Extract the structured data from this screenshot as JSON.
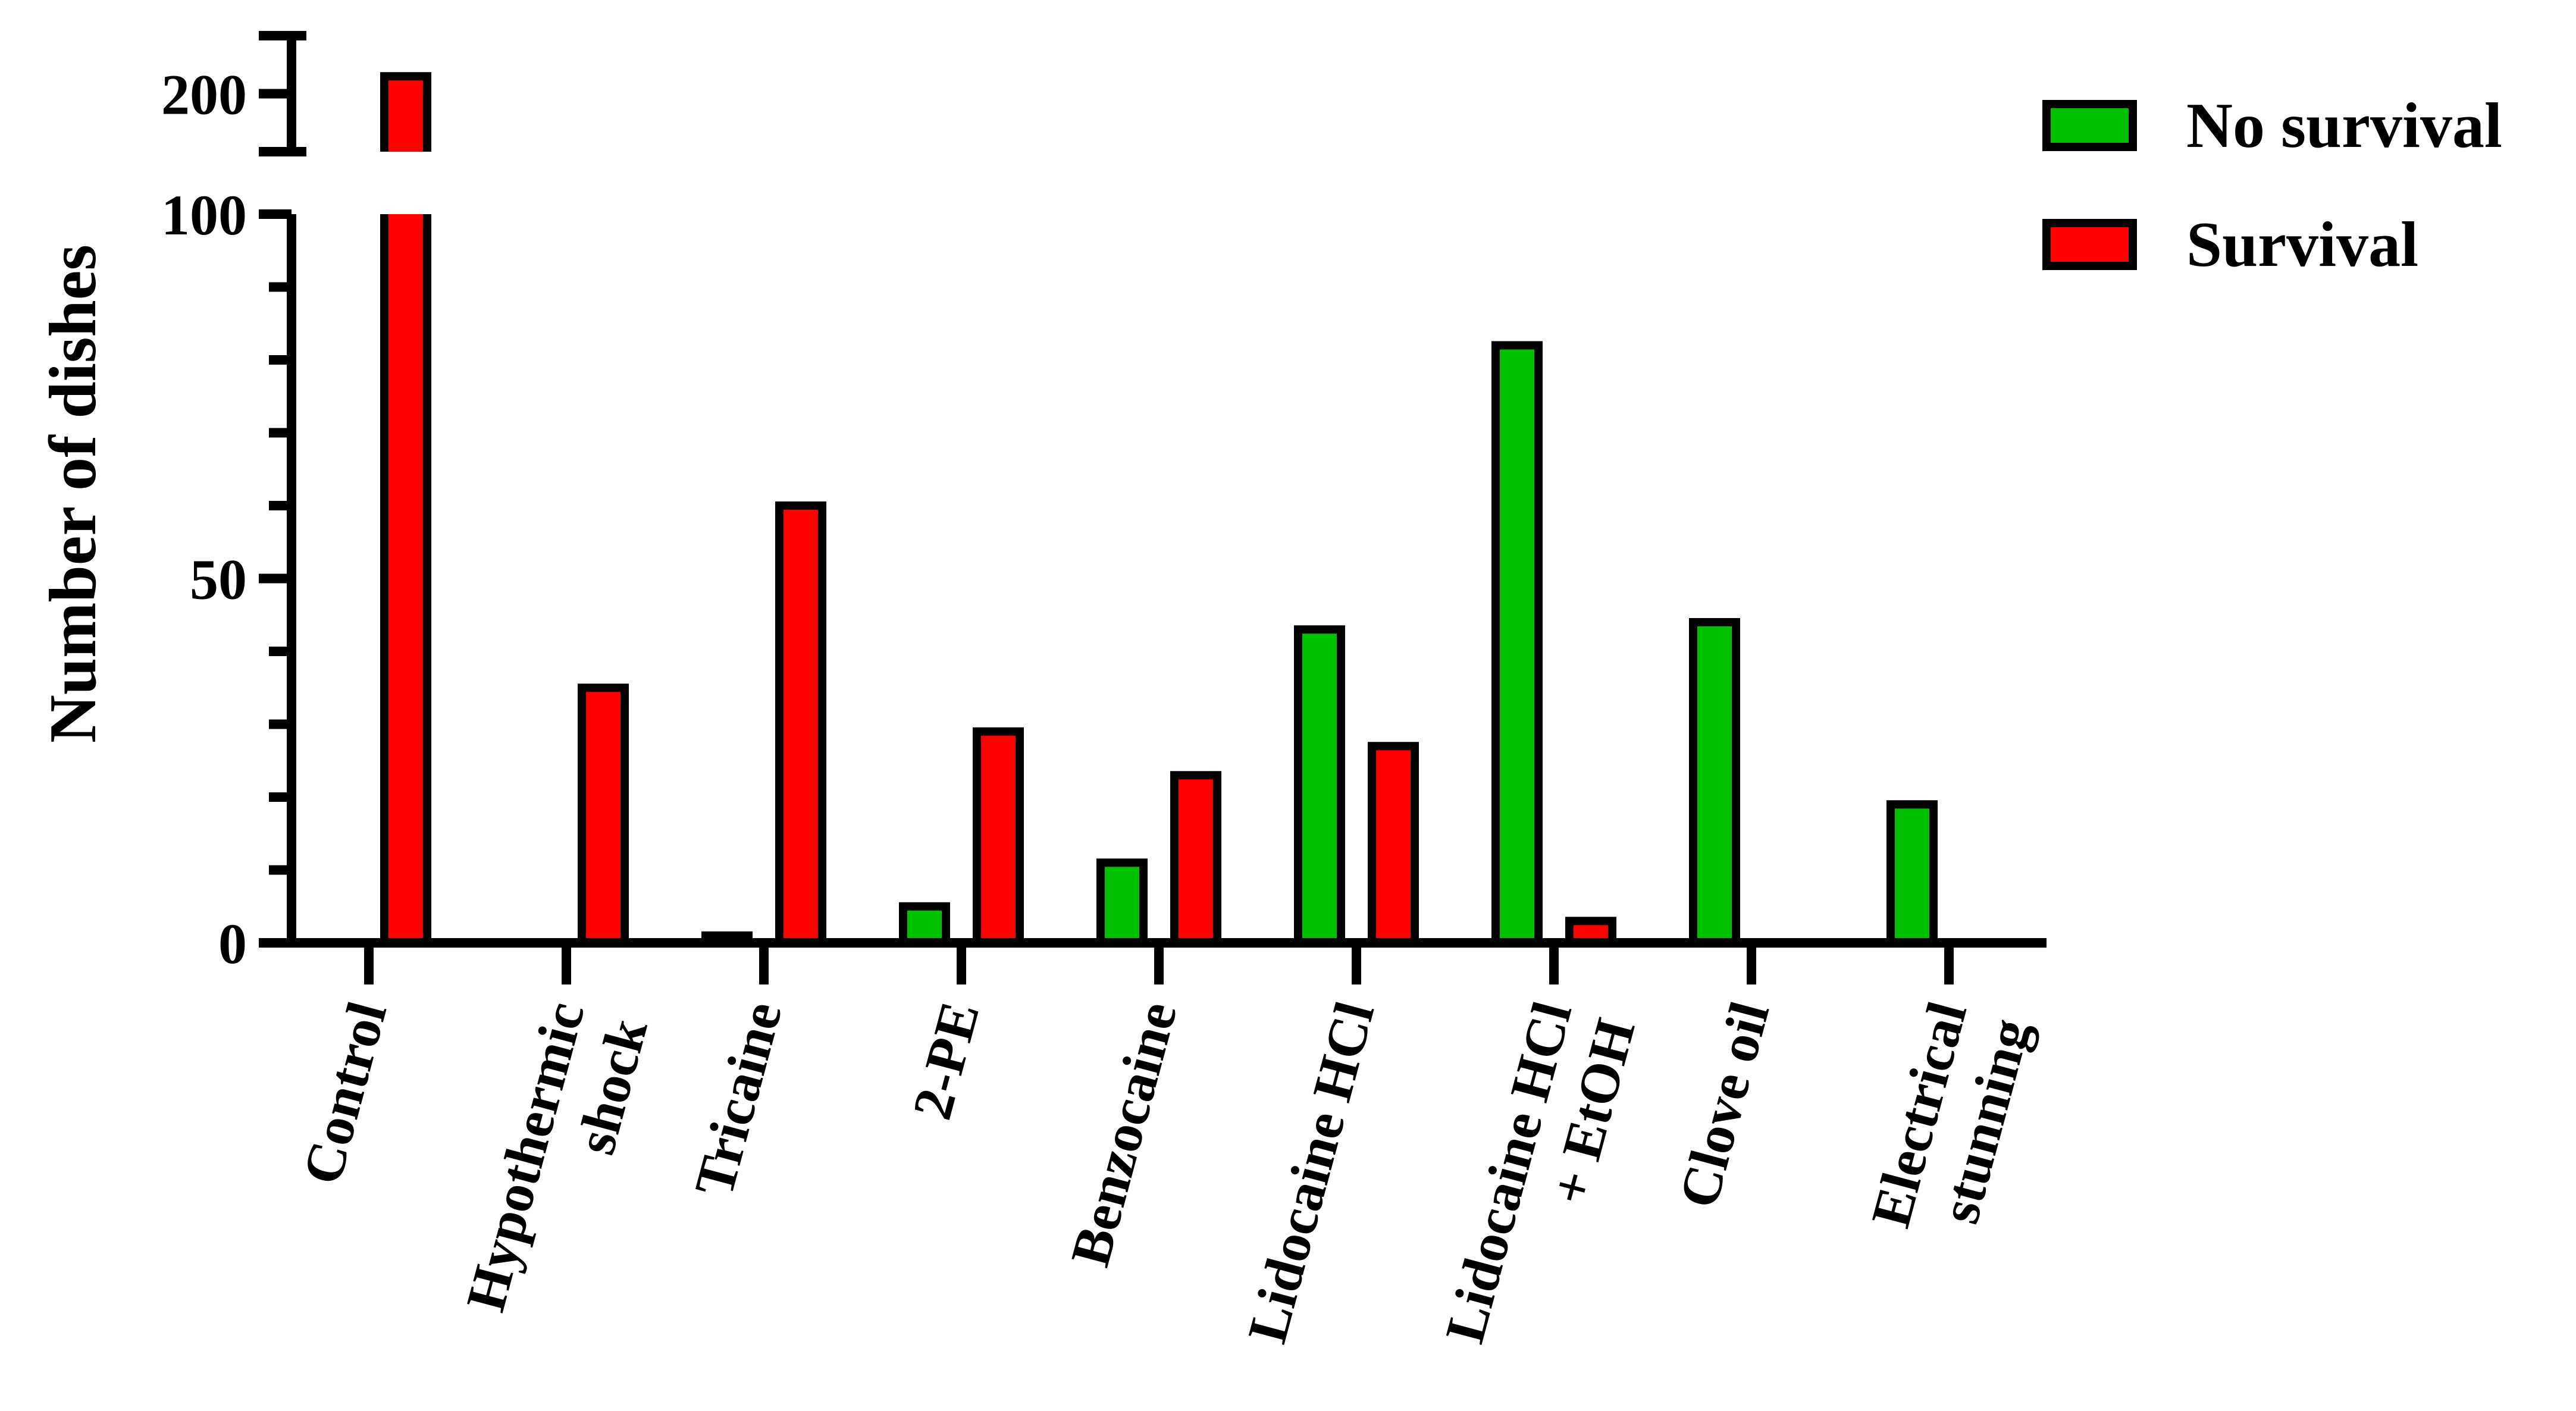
{
  "chart_data": {
    "type": "bar",
    "title": "",
    "xlabel": "",
    "ylabel": "Number of dishes",
    "categories": [
      [
        "Control"
      ],
      [
        "Hypothermic",
        "shock"
      ],
      [
        "Tricaine"
      ],
      [
        "2-PE"
      ],
      [
        "Benzocaine"
      ],
      [
        "Lidocaine HCl"
      ],
      [
        "Lidocaine HCl",
        "+ EtOH"
      ],
      [
        "Clove oil"
      ],
      [
        "Electrical",
        "stunning"
      ]
    ],
    "series": [
      {
        "name": "No survival",
        "color": "#00c000",
        "values": [
          0,
          0,
          1,
          5,
          11,
          43,
          82,
          44,
          19
        ]
      },
      {
        "name": "Survival",
        "color": "#ff0000",
        "values": [
          203,
          35,
          60,
          29,
          23,
          27,
          3,
          0,
          0
        ]
      }
    ],
    "y_axis": {
      "broken": true,
      "lower_segment": {
        "range": [
          0,
          100
        ],
        "ticks": [
          0,
          50,
          100
        ],
        "minor_step": 10
      },
      "upper_segment": {
        "range": [
          190,
          210
        ],
        "ticks": [
          200
        ]
      }
    },
    "legend": {
      "position": "top-right"
    },
    "grid": false
  }
}
